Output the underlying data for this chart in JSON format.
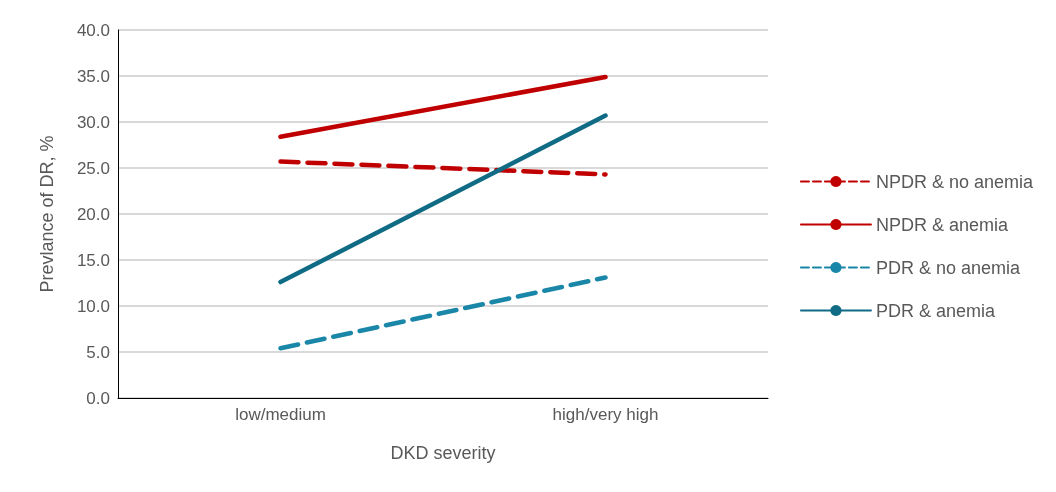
{
  "chart_data": {
    "type": "line",
    "xlabel": "DKD severity",
    "ylabel": "Prevlance of DR, %",
    "categories": [
      "low/medium",
      "high/very high"
    ],
    "series": [
      {
        "name": "NPDR & no anemia",
        "color": "#c00000",
        "line_style": "dashed",
        "values": [
          25.7,
          24.3
        ]
      },
      {
        "name": "NPDR & anemia",
        "color": "#c00000",
        "line_style": "solid",
        "values": [
          28.4,
          34.9
        ]
      },
      {
        "name": "PDR & no anemia",
        "color": "#1b87a8",
        "line_style": "dashed",
        "values": [
          5.4,
          13.1
        ]
      },
      {
        "name": "PDR & anemia",
        "color": "#106b85",
        "line_style": "solid",
        "values": [
          12.6,
          30.7
        ]
      }
    ],
    "ylim": [
      0,
      40
    ],
    "yticks": [
      {
        "value": 0,
        "label": "0.0"
      },
      {
        "value": 5,
        "label": "5.0"
      },
      {
        "value": 10,
        "label": "10.0"
      },
      {
        "value": 15,
        "label": "15.0"
      },
      {
        "value": 20,
        "label": "20.0"
      },
      {
        "value": 25,
        "label": "25.0"
      },
      {
        "value": 30,
        "label": "30.0"
      },
      {
        "value": 35,
        "label": "35.0"
      },
      {
        "value": 40,
        "label": "40.0"
      }
    ],
    "grid": "y",
    "legend": "right",
    "marker": "none"
  }
}
